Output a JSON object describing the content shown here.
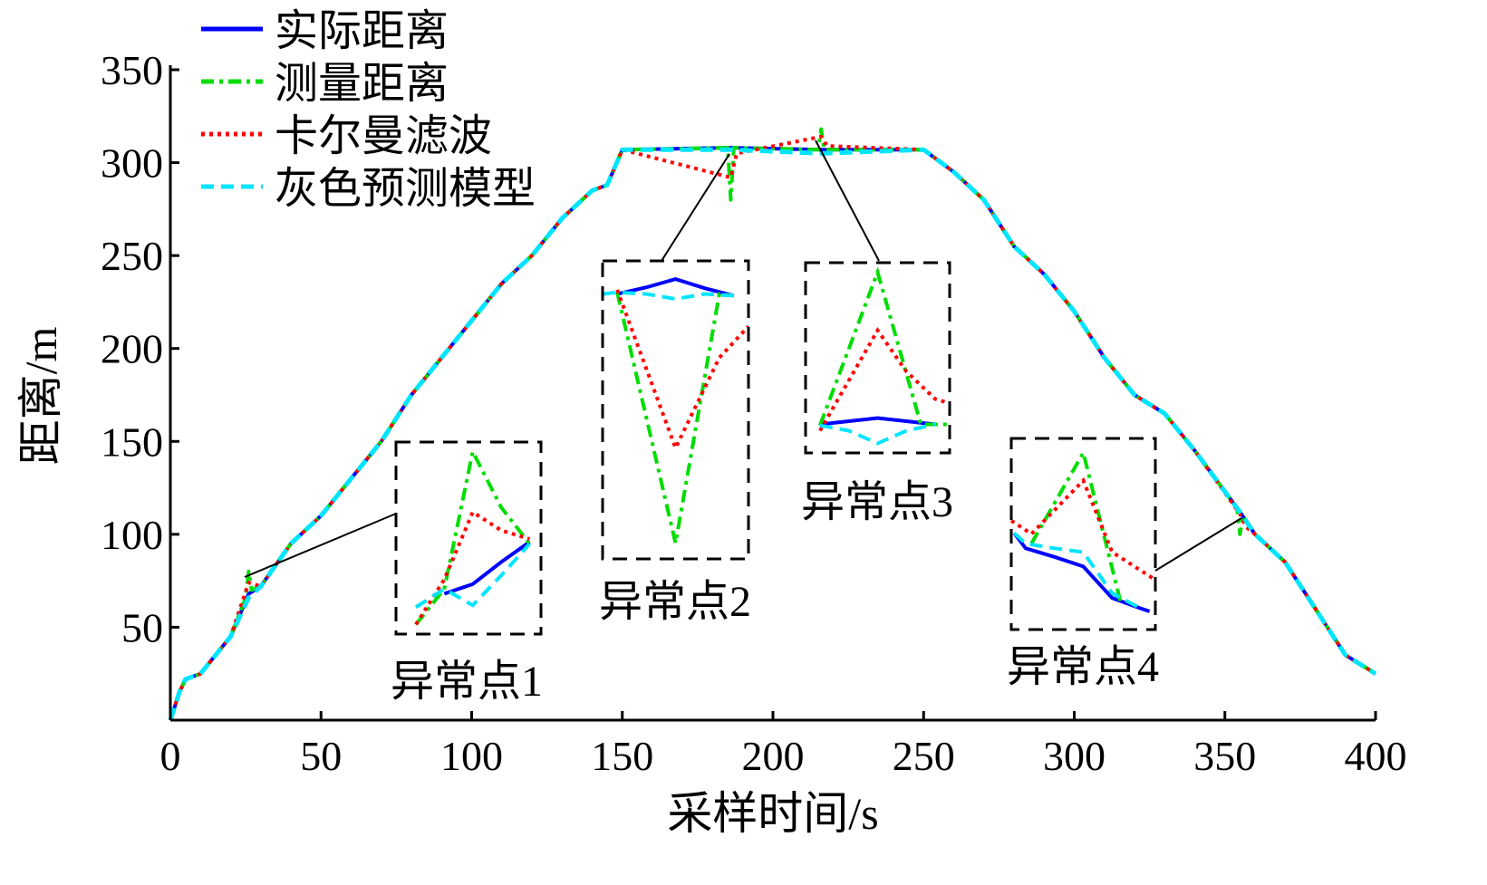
{
  "chart_data": {
    "type": "line",
    "title": "",
    "xlabel": "采样时间/s",
    "ylabel": "距离/m",
    "xlim": [
      0,
      400
    ],
    "ylim": [
      0,
      350
    ],
    "xticks": [
      0,
      50,
      100,
      150,
      200,
      250,
      300,
      350,
      400
    ],
    "yticks": [
      50,
      100,
      150,
      200,
      250,
      300,
      350
    ],
    "grid": false,
    "legend_position": "top-left",
    "series": [
      {
        "name": "实际距离",
        "color": "#0000ff",
        "style": "solid",
        "points": [
          [
            0,
            0
          ],
          [
            3,
            15
          ],
          [
            5,
            22
          ],
          [
            10,
            25
          ],
          [
            20,
            45
          ],
          [
            26,
            68
          ],
          [
            30,
            72
          ],
          [
            40,
            95
          ],
          [
            50,
            110
          ],
          [
            60,
            130
          ],
          [
            70,
            150
          ],
          [
            80,
            175
          ],
          [
            90,
            195
          ],
          [
            100,
            215
          ],
          [
            110,
            235
          ],
          [
            120,
            250
          ],
          [
            130,
            270
          ],
          [
            140,
            285
          ],
          [
            145,
            288
          ],
          [
            150,
            307
          ],
          [
            186,
            308
          ],
          [
            216,
            307
          ],
          [
            250,
            307
          ],
          [
            260,
            295
          ],
          [
            270,
            280
          ],
          [
            280,
            255
          ],
          [
            290,
            240
          ],
          [
            300,
            220
          ],
          [
            310,
            195
          ],
          [
            320,
            175
          ],
          [
            330,
            165
          ],
          [
            340,
            145
          ],
          [
            355,
            112
          ],
          [
            360,
            100
          ],
          [
            370,
            85
          ],
          [
            380,
            60
          ],
          [
            390,
            35
          ],
          [
            400,
            25
          ]
        ]
      },
      {
        "name": "测量距离",
        "color": "#00dd00",
        "style": "dashdot",
        "points": [
          [
            0,
            0
          ],
          [
            3,
            15
          ],
          [
            5,
            22
          ],
          [
            10,
            25
          ],
          [
            20,
            45
          ],
          [
            25,
            66
          ],
          [
            26,
            80
          ],
          [
            27,
            70
          ],
          [
            30,
            72
          ],
          [
            40,
            95
          ],
          [
            50,
            110
          ],
          [
            60,
            130
          ],
          [
            70,
            150
          ],
          [
            80,
            175
          ],
          [
            90,
            195
          ],
          [
            100,
            215
          ],
          [
            110,
            235
          ],
          [
            120,
            250
          ],
          [
            130,
            270
          ],
          [
            140,
            285
          ],
          [
            145,
            288
          ],
          [
            150,
            307
          ],
          [
            185,
            308
          ],
          [
            186,
            280
          ],
          [
            187,
            308
          ],
          [
            215,
            307
          ],
          [
            216,
            318
          ],
          [
            217,
            307
          ],
          [
            250,
            307
          ],
          [
            260,
            295
          ],
          [
            270,
            280
          ],
          [
            280,
            255
          ],
          [
            290,
            240
          ],
          [
            300,
            220
          ],
          [
            310,
            195
          ],
          [
            320,
            175
          ],
          [
            330,
            165
          ],
          [
            340,
            145
          ],
          [
            354,
            114
          ],
          [
            355,
            100
          ],
          [
            356,
            110
          ],
          [
            360,
            100
          ],
          [
            370,
            85
          ],
          [
            380,
            60
          ],
          [
            390,
            35
          ],
          [
            400,
            25
          ]
        ]
      },
      {
        "name": "卡尔曼滤波",
        "color": "#ff0000",
        "style": "dotted",
        "points": [
          [
            0,
            0
          ],
          [
            3,
            15
          ],
          [
            5,
            22
          ],
          [
            10,
            25
          ],
          [
            20,
            45
          ],
          [
            26,
            74
          ],
          [
            30,
            72
          ],
          [
            40,
            95
          ],
          [
            50,
            110
          ],
          [
            60,
            130
          ],
          [
            70,
            150
          ],
          [
            80,
            175
          ],
          [
            90,
            195
          ],
          [
            100,
            215
          ],
          [
            110,
            235
          ],
          [
            120,
            250
          ],
          [
            130,
            270
          ],
          [
            140,
            285
          ],
          [
            145,
            288
          ],
          [
            150,
            307
          ],
          [
            186,
            292
          ],
          [
            188,
            305
          ],
          [
            216,
            314
          ],
          [
            218,
            309
          ],
          [
            250,
            307
          ],
          [
            260,
            295
          ],
          [
            270,
            280
          ],
          [
            280,
            255
          ],
          [
            290,
            240
          ],
          [
            300,
            220
          ],
          [
            310,
            195
          ],
          [
            320,
            175
          ],
          [
            330,
            165
          ],
          [
            340,
            145
          ],
          [
            355,
            111
          ],
          [
            357,
            104
          ],
          [
            360,
            100
          ],
          [
            370,
            85
          ],
          [
            380,
            60
          ],
          [
            390,
            35
          ],
          [
            400,
            25
          ]
        ]
      },
      {
        "name": "灰色预测模型",
        "color": "#00e5ff",
        "style": "dashed",
        "points": [
          [
            0,
            0
          ],
          [
            3,
            15
          ],
          [
            5,
            22
          ],
          [
            10,
            25
          ],
          [
            20,
            45
          ],
          [
            26,
            66
          ],
          [
            30,
            72
          ],
          [
            40,
            95
          ],
          [
            50,
            110
          ],
          [
            60,
            130
          ],
          [
            70,
            150
          ],
          [
            80,
            175
          ],
          [
            90,
            195
          ],
          [
            100,
            215
          ],
          [
            110,
            235
          ],
          [
            120,
            250
          ],
          [
            130,
            270
          ],
          [
            140,
            285
          ],
          [
            145,
            288
          ],
          [
            150,
            307
          ],
          [
            186,
            307
          ],
          [
            216,
            305
          ],
          [
            250,
            307
          ],
          [
            260,
            295
          ],
          [
            270,
            280
          ],
          [
            280,
            255
          ],
          [
            290,
            240
          ],
          [
            300,
            220
          ],
          [
            310,
            195
          ],
          [
            320,
            175
          ],
          [
            330,
            165
          ],
          [
            340,
            145
          ],
          [
            355,
            112
          ],
          [
            360,
            100
          ],
          [
            370,
            85
          ],
          [
            380,
            60
          ],
          [
            390,
            35
          ],
          [
            400,
            25
          ]
        ]
      }
    ],
    "annotations": [
      {
        "label": "异常点1",
        "xlim": [
          23.3,
          28.4
        ],
        "ylim": [
          62,
          82
        ],
        "anchor": [
          26,
          72
        ],
        "series": [
          [
            [
              25,
              66.2
            ],
            [
              26,
              67.2
            ],
            [
              27,
              69.5
            ],
            [
              28,
              71.6
            ]
          ],
          [
            [
              24,
              63
            ],
            [
              25,
              66.7
            ],
            [
              26,
              81
            ],
            [
              27,
              75.2
            ],
            [
              28,
              71.4
            ]
          ],
          [
            [
              24,
              63
            ],
            [
              25,
              67.7
            ],
            [
              26,
              74.7
            ],
            [
              27,
              72.8
            ],
            [
              28,
              71.9
            ]
          ],
          [
            [
              24,
              64.8
            ],
            [
              25,
              66.7
            ],
            [
              26,
              65
            ],
            [
              27,
              68.1
            ],
            [
              28,
              71.4
            ]
          ]
        ]
      },
      {
        "label": "异常点2",
        "xlim": [
          183.5,
          188.5
        ],
        "ylim": [
          276,
          312
        ],
        "anchor": [
          186,
          306
        ],
        "series": [
          [
            [
              184,
              308
            ],
            [
              185,
              308.8
            ],
            [
              186,
              309.8
            ],
            [
              187,
              308.7
            ],
            [
              188,
              307.8
            ]
          ],
          [
            [
              184,
              308.2
            ],
            [
              186,
              277.9
            ],
            [
              187.5,
              308
            ],
            [
              188,
              307.8
            ]
          ],
          [
            [
              184,
              308.5
            ],
            [
              186,
              289.4
            ],
            [
              187.5,
              300.3
            ],
            [
              188.5,
              304.1
            ]
          ],
          [
            [
              183.5,
              308
            ],
            [
              184,
              308.2
            ],
            [
              185,
              308
            ],
            [
              186,
              307.4
            ],
            [
              187,
              308
            ],
            [
              188,
              307.8
            ]
          ]
        ]
      },
      {
        "label": "异常点3",
        "xlim": [
          213.5,
          218.5
        ],
        "ylim": [
          304,
          322
        ],
        "anchor": [
          216,
          311
        ],
        "series": [
          [
            [
              214,
              306.7
            ],
            [
              215,
              307
            ],
            [
              216,
              307.3
            ],
            [
              217,
              307
            ],
            [
              218,
              306.7
            ]
          ],
          [
            [
              214,
              306.6
            ],
            [
              216,
              321.1
            ],
            [
              217.5,
              306.7
            ],
            [
              218.5,
              306.7
            ]
          ],
          [
            [
              214,
              306.1
            ],
            [
              216,
              315.6
            ],
            [
              217,
              311.7
            ],
            [
              218,
              309.1
            ],
            [
              218.5,
              308.7
            ]
          ],
          [
            [
              214,
              306.6
            ],
            [
              215,
              306.1
            ],
            [
              216,
              304.9
            ],
            [
              217,
              306.1
            ],
            [
              218,
              306.7
            ]
          ]
        ]
      },
      {
        "label": "异常点4",
        "xlim": [
          352.5,
          357.5
        ],
        "ylim": [
          96,
          116
        ],
        "anchor": [
          355,
          108
        ],
        "series": [
          [
            [
              352.6,
              106.1
            ],
            [
              353,
              104.5
            ],
            [
              354,
              103.6
            ],
            [
              355,
              102.6
            ],
            [
              356,
              99.3
            ],
            [
              357,
              98.2
            ],
            [
              357.3,
              97.9
            ]
          ],
          [
            [
              353.2,
              105
            ],
            [
              355,
              114.5
            ],
            [
              356.3,
              98.8
            ]
          ],
          [
            [
              352.5,
              107.4
            ],
            [
              353.2,
              106
            ],
            [
              355,
              111.6
            ],
            [
              356,
              104.1
            ],
            [
              357.5,
              101.2
            ]
          ],
          [
            [
              352.6,
              106.1
            ],
            [
              353,
              105
            ],
            [
              354,
              104.5
            ],
            [
              355,
              104.1
            ],
            [
              356,
              99.8
            ],
            [
              357,
              98.2
            ]
          ]
        ]
      }
    ]
  }
}
